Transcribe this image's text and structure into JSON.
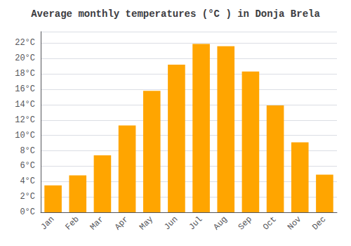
{
  "chart_data": {
    "type": "bar",
    "title": "Average monthly temperatures (°C ) in Donja Brela",
    "categories": [
      "Jan",
      "Feb",
      "Mar",
      "Apr",
      "May",
      "Jun",
      "Jul",
      "Aug",
      "Sep",
      "Oct",
      "Nov",
      "Dec"
    ],
    "values": [
      3.5,
      4.8,
      7.4,
      11.3,
      15.8,
      19.2,
      21.9,
      21.6,
      18.3,
      13.9,
      9.1,
      4.9
    ],
    "color": "#FFA500",
    "ylim": [
      0,
      23.5
    ],
    "yticks": [
      {
        "value": 0,
        "label": "0°C"
      },
      {
        "value": 2,
        "label": "2°C"
      },
      {
        "value": 4,
        "label": "4°C"
      },
      {
        "value": 6,
        "label": "6°C"
      },
      {
        "value": 8,
        "label": "8°C"
      },
      {
        "value": 10,
        "label": "10°C"
      },
      {
        "value": 12,
        "label": "12°C"
      },
      {
        "value": 14,
        "label": "14°C"
      },
      {
        "value": 16,
        "label": "16°C"
      },
      {
        "value": 18,
        "label": "18°C"
      },
      {
        "value": 20,
        "label": "20°C"
      },
      {
        "value": 22,
        "label": "22°C"
      }
    ],
    "grid": true
  }
}
